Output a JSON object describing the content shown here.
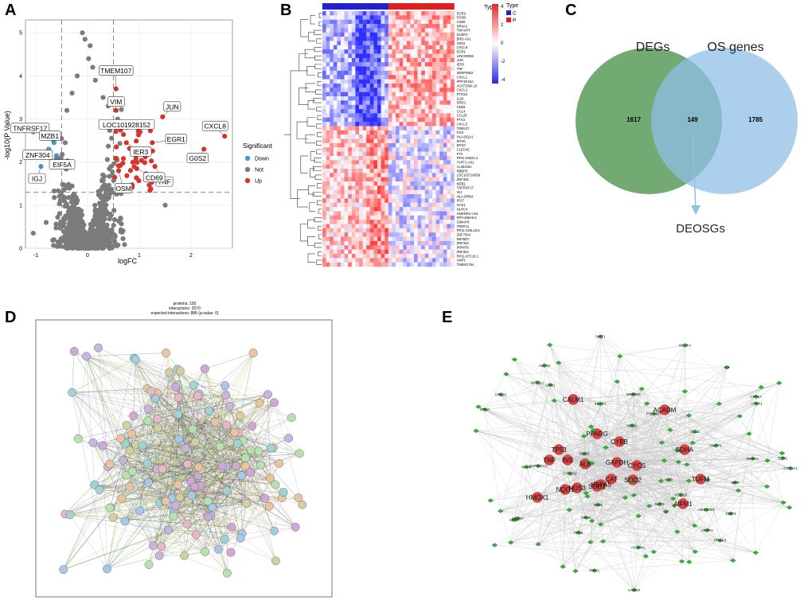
{
  "panels": {
    "a": {
      "letter": "A",
      "chart_data": {
        "type": "scatter",
        "title": "",
        "xlabel": "logFC",
        "ylabel": "-log10(P Value)",
        "xlim": [
          -1.2,
          2.8
        ],
        "ylim": [
          0,
          5.3
        ],
        "xticks": [
          "-1",
          "0",
          "1",
          "2"
        ],
        "yticks": [
          "0",
          "1",
          "2",
          "3",
          "4",
          "5"
        ],
        "thresholds": {
          "logFC": [
            -0.5,
            0.5
          ],
          "p": 1.3
        },
        "legend_title": "Significant",
        "legend_position": "right",
        "legend": [
          {
            "label": "Down",
            "color": "#3e9fc4"
          },
          {
            "label": "Not",
            "color": "#7b7b7b"
          },
          {
            "label": "Up",
            "color": "#d8322d"
          }
        ],
        "labeled_points": [
          {
            "name": "TMEM107",
            "x": 0.55,
            "y": 3.7
          },
          {
            "name": "VIM",
            "x": 0.55,
            "y": 3.2
          },
          {
            "name": "JUN",
            "x": 1.45,
            "y": 3.05
          },
          {
            "name": "LOC101928152",
            "x": 0.6,
            "y": 2.95
          },
          {
            "name": "CXCL8",
            "x": 2.65,
            "y": 2.6
          },
          {
            "name": "IER3",
            "x": 0.75,
            "y": 2.45
          },
          {
            "name": "EGR1",
            "x": 1.25,
            "y": 2.45
          },
          {
            "name": "G0S2",
            "x": 2.25,
            "y": 2.3
          },
          {
            "name": "TNF",
            "x": 1.3,
            "y": 1.9
          },
          {
            "name": "OSM",
            "x": 0.6,
            "y": 1.8
          },
          {
            "name": "CD69",
            "x": 0.95,
            "y": 1.85
          },
          {
            "name": "TNFRSF17",
            "x": -1.05,
            "y": 2.7
          },
          {
            "name": "ZNF304",
            "x": -0.75,
            "y": 2.3
          },
          {
            "name": "MZB1",
            "x": -0.65,
            "y": 2.45
          },
          {
            "name": "EIF5A",
            "x": -0.6,
            "y": 2.15
          },
          {
            "name": "IGJ",
            "x": -0.9,
            "y": 1.9
          }
        ]
      }
    },
    "b": {
      "letter": "B",
      "legend_title": "Type",
      "groups": [
        {
          "label": "C",
          "color": "#2020d0"
        },
        {
          "label": "P",
          "color": "#e02020"
        }
      ],
      "scale_ticks": [
        "4",
        "2",
        "0",
        "-2",
        "-4"
      ],
      "genes": [
        "EGR2",
        "FOSB",
        "CD69",
        "NR4A2",
        "TNFAIP3",
        "DUSP2",
        "BRD-AS1",
        "G0S2",
        "CXCL8",
        "EGR1",
        "LINC00936",
        "JUN",
        "IER3",
        "TNF",
        "SERPINB2",
        "CXCL1",
        "PPP1R15A",
        "AC073300.10",
        "CXCL2",
        "PTGS2",
        "IL1B",
        "EREG",
        "CD83",
        "CCL4",
        "CCL20",
        "PTX3",
        "CXCL3",
        "TRBV27",
        "FOS",
        "HLA-DQA1",
        "EIF3C",
        "EIF3A",
        "CLEC4C",
        "FTX",
        "RP11-69321.2",
        "TAPT1-AS1",
        "AL353181",
        "RBBP5",
        "LOC102724356",
        "ZNF302",
        "MZB1",
        "TNFRSF17",
        "IGJ",
        "HLA-DRB4",
        "IFI27",
        "OAS1",
        "NLRC4",
        "HNRNPU-AS1",
        "RP3-365A6.5",
        "GIMAP6",
        "TRMT1L",
        "RP11-225L15.5",
        "ZNF750A",
        "KBTBD7",
        "ZNF322",
        "PIPMT6",
        "ZNF304",
        "RP11-97C16.1",
        "VMP1",
        "TMEM176A"
      ]
    },
    "c": {
      "letter": "C",
      "left_label": "DEGs",
      "right_label": "OS genes",
      "left_only": "1617",
      "overlap": "149",
      "right_only": "1785",
      "result_label": "DEOSGs"
    },
    "d": {
      "letter": "D",
      "header_line1": "proteins: 150",
      "header_line2": "interactions: 2570",
      "header_line3": "expected interactions: 886 (p-value: 0)"
    },
    "e": {
      "letter": "E",
      "hub_labels": [
        "CALM1",
        "GAPDH",
        "CYCS",
        "SOD2",
        "SDHA",
        "TUFM",
        "AIFM1",
        "CAT",
        "INS",
        "ALB",
        "SOD1",
        "HSPA5",
        "PPARG",
        "ACADM",
        "CYBB",
        "TP53",
        "NQO1",
        "TNF",
        "NOS3",
        "HMOX1"
      ],
      "other_labels": [
        "CAND2",
        "SDS5A",
        "PKB2",
        "ACADVL",
        "HSD17B4",
        "NDUFA",
        "PARP1",
        "NFS1",
        "POLRMT",
        "DDIT3",
        "MRPS44",
        "MTO1",
        "GPX3",
        "CPT1A",
        "NCF1",
        "SIRT1",
        "HSP90AA1",
        "CREB1",
        "MAPK1",
        "VEGFA",
        "CYP1A2",
        "CYP1A1",
        "NFE2L2",
        "SOD3",
        "APEX1",
        "GPX1",
        "PRDX3",
        "PINK1",
        "ESR1",
        "IL6",
        "FOXO3",
        "MPO",
        "HIF1A",
        "CP",
        "SCD",
        "ALOX5",
        "CCL2",
        "KEAP1",
        "NOX4",
        "MT1A"
      ]
    }
  }
}
